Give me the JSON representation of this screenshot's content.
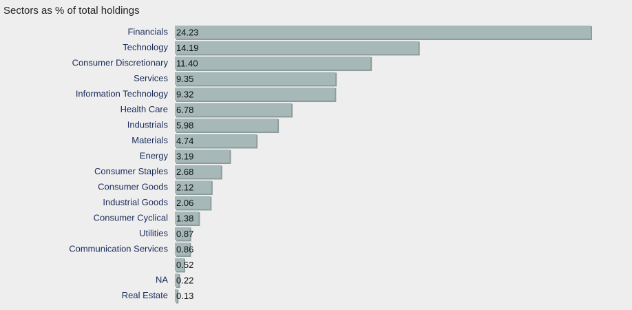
{
  "chart_data": {
    "type": "bar",
    "orientation": "horizontal",
    "title": "Sectors as % of total holdings",
    "xlabel": "",
    "ylabel": "",
    "xlim": [
      0,
      24.23
    ],
    "grid": false,
    "legend": "none",
    "categories": [
      "Financials",
      "Technology",
      "Consumer Discretionary",
      "Services",
      "Information Technology",
      "Health Care",
      "Industrials",
      "Materials",
      "Energy",
      "Consumer Staples",
      "Consumer Goods",
      "Industrial Goods",
      "Consumer Cyclical",
      "Utilities",
      "Communication Services",
      "",
      "NA",
      "Real Estate"
    ],
    "values": [
      24.23,
      14.19,
      11.4,
      9.35,
      9.32,
      6.78,
      5.98,
      4.74,
      3.19,
      2.68,
      2.12,
      2.06,
      1.38,
      0.87,
      0.86,
      0.52,
      0.22,
      0.13
    ],
    "value_labels": [
      "24.23",
      "14.19",
      "11.40",
      "9.35",
      "9.32",
      "6.78",
      "5.98",
      "4.74",
      "3.19",
      "2.68",
      "2.12",
      "2.06",
      "1.38",
      "0.87",
      "0.86",
      "0.52",
      "0.22",
      "0.13"
    ],
    "colors": {
      "bar": "#a6b8b8",
      "bar_highlight": "#ffffff",
      "bar_shadow": "#8e9c9c",
      "category_text": "#1b2b5a",
      "value_text": "#111111",
      "background": "#eeeeee"
    }
  }
}
